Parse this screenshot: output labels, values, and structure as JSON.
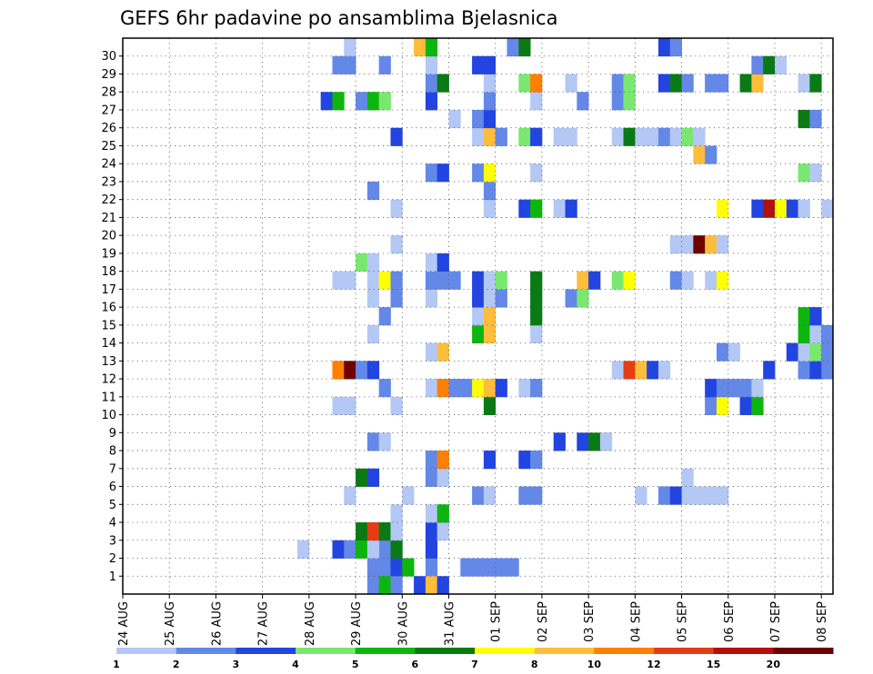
{
  "chart_data": {
    "type": "heatmap",
    "title": "GEFS 6hr padavine po ansamblima Bjelasnica",
    "x_tick_labels": [
      "24 AUG",
      "25 AUG",
      "26 AUG",
      "27 AUG",
      "28 AUG",
      "29 AUG",
      "30 AUG",
      "31 AUG",
      "01 SEP",
      "02 SEP",
      "03 SEP",
      "04 SEP",
      "05 SEP",
      "06 SEP",
      "07 SEP",
      "08 SEP"
    ],
    "y_tick_labels": [
      "1",
      "2",
      "3",
      "4",
      "5",
      "6",
      "7",
      "8",
      "9",
      "10",
      "11",
      "12",
      "13",
      "14",
      "15",
      "16",
      "17",
      "18",
      "19",
      "20",
      "21",
      "22",
      "23",
      "24",
      "25",
      "26",
      "27",
      "28",
      "29",
      "30"
    ],
    "x_step_hours": 6,
    "x_start": "24 AUG 00Z",
    "grid": true,
    "legend_placement": "bottom",
    "levels": [
      1,
      2,
      3,
      4,
      5,
      6,
      7,
      8,
      10,
      12,
      15,
      20
    ],
    "legend_labels": [
      "1",
      "2",
      "3",
      "4",
      "5",
      "6",
      "7",
      "8",
      "10",
      "12",
      "15",
      "20"
    ],
    "colors": [
      "#b4c8f5",
      "#6388e8",
      "#2244e0",
      "#7ae870",
      "#0db60d",
      "#0a7a14",
      "#ffff00",
      "#ffbd3c",
      "#ff7f00",
      "#e63c14",
      "#b40e0e",
      "#6e0000"
    ],
    "cells": [
      [
        21,
        1,
        2
      ],
      [
        22,
        1,
        2
      ],
      [
        22,
        2,
        2
      ],
      [
        23,
        1,
        3
      ],
      [
        23,
        2,
        6
      ],
      [
        24,
        1,
        5
      ],
      [
        26,
        1,
        2
      ],
      [
        29,
        1,
        2
      ],
      [
        30,
        1,
        2
      ],
      [
        31,
        1,
        2
      ],
      [
        32,
        1,
        2
      ],
      [
        33,
        1,
        2
      ],
      [
        33,
        30,
        2
      ],
      [
        34,
        30,
        6
      ],
      [
        15,
        2,
        1
      ],
      [
        18,
        2,
        3
      ],
      [
        19,
        2,
        2
      ],
      [
        20,
        2,
        5
      ],
      [
        21,
        2,
        1
      ],
      [
        26,
        2,
        3
      ],
      [
        20,
        3,
        6
      ],
      [
        21,
        3,
        10
      ],
      [
        22,
        3,
        6
      ],
      [
        23,
        3,
        1
      ],
      [
        26,
        3,
        3
      ],
      [
        27,
        3,
        1
      ],
      [
        23,
        4,
        1
      ],
      [
        26,
        4,
        1
      ],
      [
        27,
        4,
        5
      ],
      [
        19,
        5,
        1
      ],
      [
        24,
        5,
        1
      ],
      [
        30,
        5,
        2
      ],
      [
        31,
        5,
        1
      ],
      [
        34,
        5,
        2
      ],
      [
        35,
        5,
        2
      ],
      [
        44,
        5,
        1
      ],
      [
        46,
        5,
        2
      ],
      [
        47,
        5,
        3
      ],
      [
        48,
        5,
        1
      ],
      [
        49,
        5,
        1
      ],
      [
        50,
        5,
        1
      ],
      [
        51,
        5,
        1
      ],
      [
        20,
        6,
        6
      ],
      [
        21,
        6,
        3
      ],
      [
        26,
        6,
        2
      ],
      [
        27,
        6,
        1
      ],
      [
        48,
        6,
        1
      ],
      [
        26,
        7,
        2
      ],
      [
        27,
        7,
        9
      ],
      [
        31,
        7,
        3
      ],
      [
        34,
        7,
        3
      ],
      [
        35,
        7,
        2
      ],
      [
        21,
        8,
        2
      ],
      [
        22,
        8,
        1
      ],
      [
        37,
        8,
        3
      ],
      [
        39,
        8,
        3
      ],
      [
        40,
        8,
        6
      ],
      [
        41,
        8,
        1
      ],
      [
        18,
        10,
        1
      ],
      [
        19,
        10,
        1
      ],
      [
        23,
        10,
        1
      ],
      [
        31,
        10,
        6
      ],
      [
        50,
        10,
        2
      ],
      [
        51,
        10,
        7
      ],
      [
        53,
        10,
        3
      ],
      [
        54,
        10,
        5
      ],
      [
        22,
        11,
        2
      ],
      [
        26,
        11,
        1
      ],
      [
        27,
        11,
        9
      ],
      [
        28,
        11,
        2
      ],
      [
        29,
        11,
        2
      ],
      [
        30,
        11,
        7
      ],
      [
        31,
        11,
        8
      ],
      [
        32,
        11,
        3
      ],
      [
        34,
        11,
        1
      ],
      [
        35,
        11,
        2
      ],
      [
        50,
        11,
        3
      ],
      [
        51,
        11,
        2
      ],
      [
        52,
        11,
        2
      ],
      [
        53,
        11,
        2
      ],
      [
        54,
        11,
        1
      ],
      [
        18,
        12,
        9
      ],
      [
        19,
        12,
        12
      ],
      [
        20,
        12,
        2
      ],
      [
        21,
        12,
        3
      ],
      [
        42,
        12,
        1
      ],
      [
        43,
        12,
        10
      ],
      [
        44,
        12,
        8
      ],
      [
        45,
        12,
        3
      ],
      [
        46,
        12,
        1
      ],
      [
        55,
        12,
        3
      ],
      [
        58,
        12,
        2
      ],
      [
        59,
        12,
        3
      ],
      [
        60,
        12,
        2
      ],
      [
        26,
        13,
        1
      ],
      [
        27,
        13,
        8
      ],
      [
        51,
        13,
        2
      ],
      [
        52,
        13,
        1
      ],
      [
        57,
        13,
        3
      ],
      [
        58,
        13,
        1
      ],
      [
        59,
        13,
        4
      ],
      [
        60,
        13,
        2
      ],
      [
        21,
        14,
        1
      ],
      [
        30,
        14,
        5
      ],
      [
        31,
        14,
        8
      ],
      [
        35,
        14,
        1
      ],
      [
        58,
        14,
        5
      ],
      [
        59,
        14,
        1
      ],
      [
        60,
        14,
        2
      ],
      [
        22,
        15,
        2
      ],
      [
        30,
        15,
        1
      ],
      [
        31,
        15,
        8
      ],
      [
        35,
        15,
        6
      ],
      [
        58,
        15,
        5
      ],
      [
        59,
        15,
        3
      ],
      [
        21,
        16,
        1
      ],
      [
        23,
        16,
        2
      ],
      [
        26,
        16,
        1
      ],
      [
        30,
        16,
        3
      ],
      [
        31,
        16,
        1
      ],
      [
        32,
        16,
        2
      ],
      [
        35,
        16,
        6
      ],
      [
        38,
        16,
        2
      ],
      [
        39,
        16,
        4
      ],
      [
        18,
        17,
        1
      ],
      [
        19,
        17,
        1
      ],
      [
        21,
        17,
        1
      ],
      [
        22,
        17,
        7
      ],
      [
        23,
        17,
        2
      ],
      [
        26,
        17,
        2
      ],
      [
        27,
        17,
        2
      ],
      [
        28,
        17,
        2
      ],
      [
        30,
        17,
        3
      ],
      [
        31,
        17,
        1
      ],
      [
        32,
        17,
        4
      ],
      [
        35,
        17,
        6
      ],
      [
        39,
        17,
        8
      ],
      [
        40,
        17,
        3
      ],
      [
        42,
        17,
        4
      ],
      [
        43,
        17,
        7
      ],
      [
        47,
        17,
        2
      ],
      [
        48,
        17,
        1
      ],
      [
        50,
        17,
        1
      ],
      [
        51,
        17,
        7
      ],
      [
        20,
        18,
        4
      ],
      [
        21,
        18,
        1
      ],
      [
        26,
        18,
        1
      ],
      [
        27,
        18,
        3
      ],
      [
        23,
        19,
        1
      ],
      [
        47,
        19,
        1
      ],
      [
        48,
        19,
        1
      ],
      [
        49,
        19,
        12
      ],
      [
        50,
        19,
        8
      ],
      [
        51,
        19,
        1
      ],
      [
        23,
        21,
        1
      ],
      [
        31,
        21,
        1
      ],
      [
        34,
        21,
        3
      ],
      [
        35,
        21,
        5
      ],
      [
        37,
        21,
        1
      ],
      [
        38,
        21,
        3
      ],
      [
        51,
        21,
        7
      ],
      [
        54,
        21,
        3
      ],
      [
        55,
        21,
        11
      ],
      [
        56,
        21,
        7
      ],
      [
        57,
        21,
        3
      ],
      [
        58,
        21,
        1
      ],
      [
        60,
        21,
        1
      ],
      [
        21,
        22,
        2
      ],
      [
        31,
        22,
        2
      ],
      [
        26,
        23,
        2
      ],
      [
        27,
        23,
        3
      ],
      [
        30,
        23,
        2
      ],
      [
        31,
        23,
        7
      ],
      [
        35,
        23,
        1
      ],
      [
        58,
        23,
        4
      ],
      [
        59,
        23,
        1
      ],
      [
        49,
        24,
        8
      ],
      [
        50,
        24,
        2
      ],
      [
        23,
        25,
        3
      ],
      [
        30,
        25,
        1
      ],
      [
        31,
        25,
        8
      ],
      [
        32,
        25,
        2
      ],
      [
        34,
        25,
        4
      ],
      [
        35,
        25,
        3
      ],
      [
        37,
        25,
        1
      ],
      [
        38,
        25,
        1
      ],
      [
        42,
        25,
        1
      ],
      [
        43,
        25,
        6
      ],
      [
        44,
        25,
        1
      ],
      [
        45,
        25,
        1
      ],
      [
        46,
        25,
        2
      ],
      [
        47,
        25,
        1
      ],
      [
        48,
        25,
        4
      ],
      [
        49,
        25,
        1
      ],
      [
        28,
        26,
        1
      ],
      [
        30,
        26,
        2
      ],
      [
        31,
        26,
        3
      ],
      [
        58,
        26,
        6
      ],
      [
        59,
        26,
        2
      ],
      [
        17,
        27,
        3
      ],
      [
        18,
        27,
        5
      ],
      [
        20,
        27,
        2
      ],
      [
        21,
        27,
        5
      ],
      [
        22,
        27,
        4
      ],
      [
        26,
        27,
        3
      ],
      [
        31,
        27,
        2
      ],
      [
        35,
        27,
        1
      ],
      [
        39,
        27,
        2
      ],
      [
        42,
        27,
        2
      ],
      [
        43,
        27,
        4
      ],
      [
        26,
        28,
        2
      ],
      [
        27,
        28,
        6
      ],
      [
        31,
        28,
        1
      ],
      [
        34,
        28,
        4
      ],
      [
        35,
        28,
        9
      ],
      [
        38,
        28,
        1
      ],
      [
        42,
        28,
        2
      ],
      [
        43,
        28,
        4
      ],
      [
        46,
        28,
        3
      ],
      [
        47,
        28,
        6
      ],
      [
        48,
        28,
        2
      ],
      [
        50,
        28,
        2
      ],
      [
        51,
        28,
        2
      ],
      [
        53,
        28,
        6
      ],
      [
        54,
        28,
        8
      ],
      [
        58,
        28,
        1
      ],
      [
        59,
        28,
        6
      ],
      [
        18,
        29,
        2
      ],
      [
        19,
        29,
        2
      ],
      [
        22,
        29,
        2
      ],
      [
        26,
        29,
        1
      ],
      [
        30,
        29,
        3
      ],
      [
        31,
        29,
        3
      ],
      [
        54,
        29,
        2
      ],
      [
        55,
        29,
        6
      ],
      [
        56,
        29,
        1
      ],
      [
        19,
        30,
        1
      ],
      [
        25,
        30,
        8
      ],
      [
        26,
        30,
        5
      ],
      [
        46,
        30,
        3
      ],
      [
        47,
        30,
        2
      ],
      [
        21,
        0,
        2
      ],
      [
        22,
        0,
        5
      ],
      [
        23,
        0,
        2
      ],
      [
        25,
        0,
        3
      ],
      [
        26,
        0,
        8
      ],
      [
        27,
        0,
        3
      ]
    ]
  }
}
